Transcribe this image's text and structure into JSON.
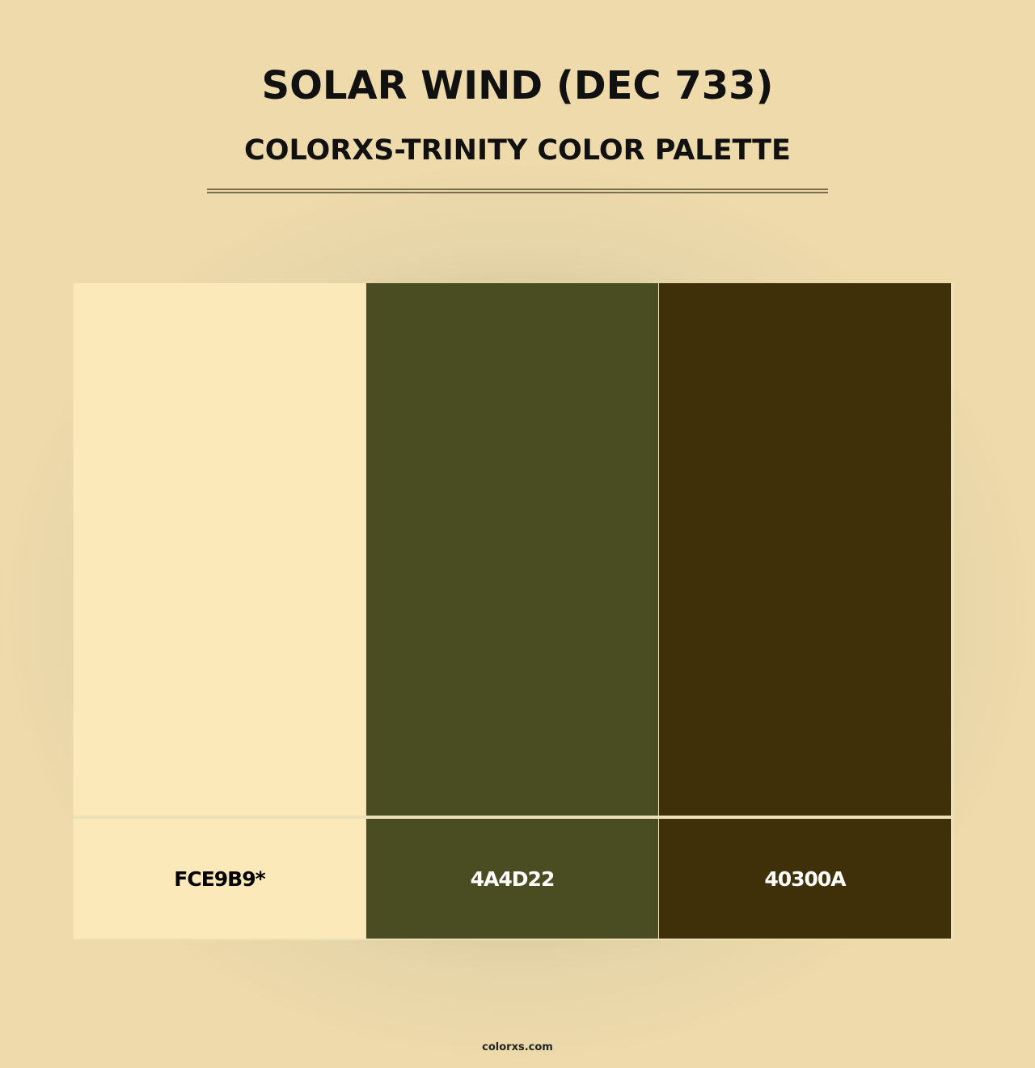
{
  "header": {
    "title": "SOLAR WIND (DEC 733)",
    "subtitle": "COLORXS-TRINITY COLOR PALETTE"
  },
  "palette": [
    {
      "hex": "#FCE9B9",
      "label": "FCE9B9*",
      "text_color": "#000000"
    },
    {
      "hex": "#4A4D22",
      "label": "4A4D22",
      "text_color": "#FFFFFF"
    },
    {
      "hex": "#40300A",
      "label": "40300A",
      "text_color": "#FFFFFF"
    }
  ],
  "footer": {
    "site": "colorxs.com"
  }
}
